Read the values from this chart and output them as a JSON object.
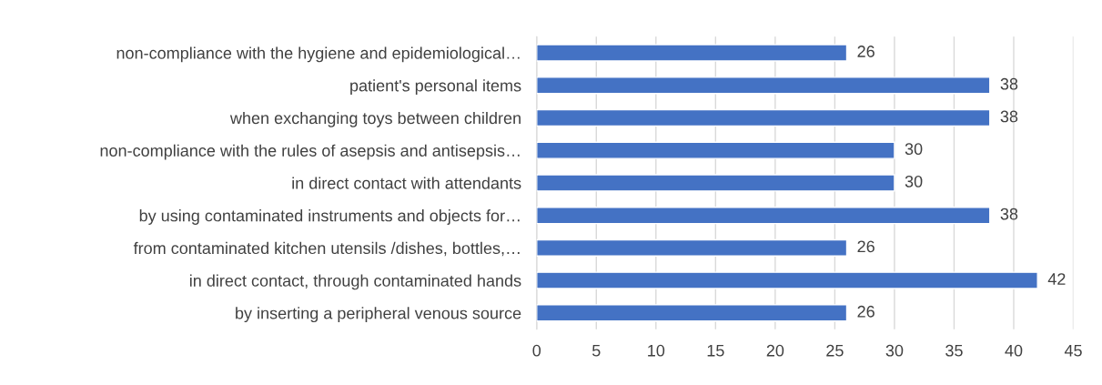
{
  "chart_data": {
    "type": "bar",
    "orientation": "horizontal",
    "categories": [
      "non-compliance with the hygiene and epidemiological…",
      "patient's personal items",
      "when exchanging toys between children",
      "non-compliance with the rules of asepsis and antisepsis…",
      "in direct contact with attendants",
      "by using contaminated instruments and objects for…",
      "from contaminated kitchen utensils /dishes, bottles,…",
      "in direct contact, through contaminated hands",
      "by inserting a peripheral venous source"
    ],
    "values": [
      26,
      38,
      38,
      30,
      30,
      38,
      26,
      42,
      26
    ],
    "color": "#4472c4",
    "xlim": [
      0,
      45
    ],
    "xticks": [
      0,
      5,
      10,
      15,
      20,
      25,
      30,
      35,
      40,
      45
    ],
    "grid": "x",
    "data_labels": true
  }
}
